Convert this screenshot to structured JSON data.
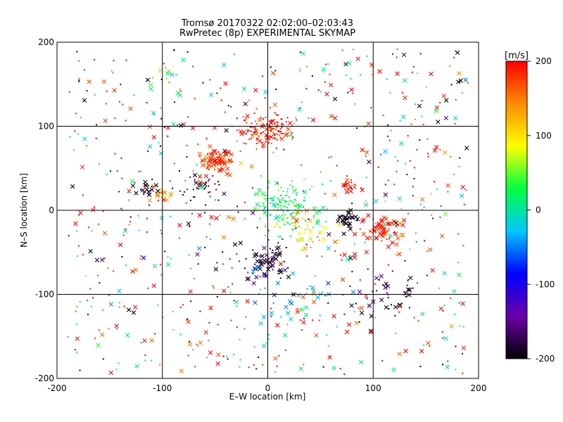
{
  "title_line1": "Tromsø 20170322 02:02:00–02:03:43",
  "title_line2": "RwPretec (8p) EXPERIMENTAL SKYMAP",
  "chart_data": {
    "type": "scatter",
    "xlabel": "E–W location [km]",
    "ylabel": "N–S location [km]",
    "xlim": [
      -200,
      200
    ],
    "ylim": [
      -200,
      200
    ],
    "xticks": [
      -200,
      -100,
      0,
      100,
      200
    ],
    "yticks": [
      -200,
      -100,
      0,
      100,
      200
    ],
    "grid": true,
    "colorbar": {
      "label": "[m/s]",
      "min": -200,
      "max": 200,
      "ticks": [
        200,
        100,
        0,
        -100,
        -200
      ],
      "stops": [
        "#000000",
        "#6a00a8",
        "#0000ff",
        "#00c8ff",
        "#00ff40",
        "#ffff00",
        "#ff8c00",
        "#ff0000"
      ]
    },
    "clusters": [
      {
        "x": 0,
        "y": 95,
        "v": 190,
        "spread": 12,
        "n": 150,
        "marker": "dot"
      },
      {
        "x": -50,
        "y": 60,
        "v": 185,
        "spread": 8,
        "n": 90,
        "marker": "x"
      },
      {
        "x": 15,
        "y": 5,
        "v": 20,
        "spread": 15,
        "n": 170,
        "marker": "dot"
      },
      {
        "x": 110,
        "y": -25,
        "v": 190,
        "spread": 10,
        "n": 70,
        "marker": "x"
      },
      {
        "x": 0,
        "y": -62,
        "v": -190,
        "spread": 12,
        "n": 70,
        "marker": "x"
      },
      {
        "x": 75,
        "y": -12,
        "v": -200,
        "spread": 6,
        "n": 35,
        "marker": "x"
      },
      {
        "x": -65,
        "y": 28,
        "v": -190,
        "spread": 9,
        "n": 35,
        "marker": "dot"
      },
      {
        "x": -115,
        "y": 25,
        "v": -190,
        "spread": 6,
        "n": 20,
        "marker": "x"
      },
      {
        "x": 75,
        "y": 28,
        "v": 190,
        "spread": 5,
        "n": 20,
        "marker": "x"
      },
      {
        "x": -100,
        "y": 18,
        "v": 150,
        "spread": 6,
        "n": 15,
        "marker": "x"
      },
      {
        "x": 110,
        "y": -100,
        "v": -190,
        "spread": 20,
        "n": 40,
        "marker": "x"
      },
      {
        "x": -100,
        "y": 160,
        "v": 40,
        "spread": 8,
        "n": 12,
        "marker": "x"
      },
      {
        "x": 40,
        "y": -20,
        "v": 100,
        "spread": 14,
        "n": 40,
        "marker": "x"
      },
      {
        "x": 20,
        "y": -110,
        "v": -40,
        "spread": 20,
        "n": 30,
        "marker": "x"
      },
      {
        "x": 0,
        "y": 0,
        "v": 190,
        "spread": 110,
        "n": 380,
        "marker": "mixed"
      },
      {
        "x": 0,
        "y": 0,
        "v": -190,
        "spread": 110,
        "n": 140,
        "marker": "mixed"
      },
      {
        "x": 0,
        "y": 0,
        "v": 0,
        "spread": 110,
        "n": 200,
        "marker": "mixed"
      }
    ]
  }
}
